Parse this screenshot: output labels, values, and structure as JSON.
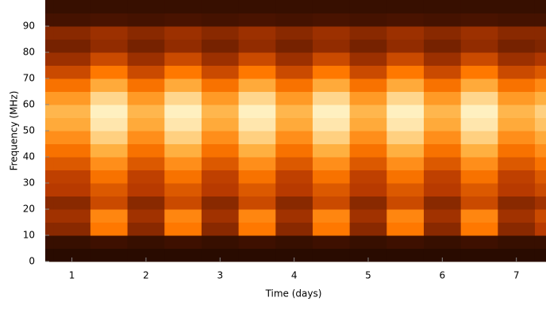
{
  "chart_data": {
    "type": "heatmap",
    "x_label": "Time (days)",
    "y_label": "Frequency (MHz)",
    "xlim": [
      0.64,
      7.4
    ],
    "ylim": [
      0,
      100
    ],
    "xticks": [
      1,
      2,
      3,
      4,
      5,
      6,
      7
    ],
    "yticks": [
      0,
      10,
      20,
      30,
      40,
      50,
      60,
      70,
      80,
      90
    ],
    "xbins": [
      0.64,
      0.75,
      1.25,
      1.75,
      2.25,
      2.75,
      3.25,
      3.75,
      4.25,
      4.75,
      5.25,
      5.75,
      6.25,
      6.75,
      7.25,
      7.4
    ],
    "ybins": [
      0,
      5,
      10,
      15,
      20,
      25,
      30,
      35,
      40,
      45,
      50,
      55,
      60,
      65,
      70,
      75,
      80,
      85,
      90,
      95,
      100
    ],
    "colormap": [
      "#140500",
      "#5a1800",
      "#b83a00",
      "#ff7800",
      "#ffb040",
      "#fff0c0"
    ],
    "values": [
      [
        0.06,
        0.06,
        0.06,
        0.06,
        0.06,
        0.06,
        0.06,
        0.06,
        0.06,
        0.06,
        0.06,
        0.06,
        0.06,
        0.06,
        0.06
      ],
      [
        0.1,
        0.1,
        0.12,
        0.1,
        0.12,
        0.1,
        0.12,
        0.1,
        0.12,
        0.1,
        0.12,
        0.1,
        0.12,
        0.1,
        0.1
      ],
      [
        0.3,
        0.3,
        0.6,
        0.3,
        0.6,
        0.3,
        0.6,
        0.3,
        0.6,
        0.3,
        0.6,
        0.3,
        0.6,
        0.3,
        0.4
      ],
      [
        0.35,
        0.35,
        0.65,
        0.35,
        0.65,
        0.35,
        0.65,
        0.35,
        0.65,
        0.35,
        0.65,
        0.35,
        0.65,
        0.35,
        0.45
      ],
      [
        0.3,
        0.3,
        0.45,
        0.3,
        0.45,
        0.3,
        0.45,
        0.3,
        0.45,
        0.3,
        0.45,
        0.3,
        0.45,
        0.3,
        0.35
      ],
      [
        0.4,
        0.4,
        0.5,
        0.4,
        0.5,
        0.4,
        0.5,
        0.4,
        0.5,
        0.4,
        0.5,
        0.4,
        0.5,
        0.4,
        0.45
      ],
      [
        0.42,
        0.42,
        0.58,
        0.42,
        0.58,
        0.42,
        0.58,
        0.42,
        0.58,
        0.42,
        0.58,
        0.42,
        0.58,
        0.42,
        0.5
      ],
      [
        0.5,
        0.5,
        0.68,
        0.5,
        0.68,
        0.5,
        0.68,
        0.5,
        0.68,
        0.5,
        0.68,
        0.5,
        0.68,
        0.5,
        0.58
      ],
      [
        0.58,
        0.58,
        0.8,
        0.58,
        0.8,
        0.58,
        0.8,
        0.58,
        0.8,
        0.58,
        0.8,
        0.58,
        0.8,
        0.58,
        0.68
      ],
      [
        0.68,
        0.68,
        0.9,
        0.68,
        0.9,
        0.68,
        0.9,
        0.68,
        0.9,
        0.68,
        0.9,
        0.68,
        0.9,
        0.68,
        0.78
      ],
      [
        0.78,
        0.78,
        0.97,
        0.78,
        0.97,
        0.78,
        0.97,
        0.78,
        0.97,
        0.78,
        0.97,
        0.78,
        0.97,
        0.78,
        0.86
      ],
      [
        0.82,
        0.82,
        1.0,
        0.82,
        1.0,
        0.82,
        1.0,
        0.82,
        1.0,
        0.82,
        1.0,
        0.82,
        1.0,
        0.82,
        0.9
      ],
      [
        0.72,
        0.72,
        0.92,
        0.72,
        0.92,
        0.72,
        0.92,
        0.72,
        0.92,
        0.72,
        0.92,
        0.72,
        0.92,
        0.72,
        0.8
      ],
      [
        0.58,
        0.58,
        0.78,
        0.58,
        0.78,
        0.58,
        0.78,
        0.58,
        0.78,
        0.58,
        0.78,
        0.58,
        0.78,
        0.58,
        0.66
      ],
      [
        0.45,
        0.45,
        0.6,
        0.45,
        0.6,
        0.45,
        0.6,
        0.45,
        0.6,
        0.45,
        0.6,
        0.45,
        0.6,
        0.45,
        0.5
      ],
      [
        0.34,
        0.34,
        0.45,
        0.34,
        0.45,
        0.34,
        0.45,
        0.34,
        0.45,
        0.34,
        0.45,
        0.34,
        0.45,
        0.34,
        0.38
      ],
      [
        0.26,
        0.26,
        0.32,
        0.26,
        0.32,
        0.26,
        0.32,
        0.26,
        0.32,
        0.26,
        0.32,
        0.26,
        0.32,
        0.26,
        0.28
      ],
      [
        0.3,
        0.3,
        0.34,
        0.3,
        0.34,
        0.3,
        0.34,
        0.3,
        0.34,
        0.3,
        0.34,
        0.3,
        0.34,
        0.3,
        0.3
      ],
      [
        0.14,
        0.14,
        0.15,
        0.14,
        0.15,
        0.14,
        0.15,
        0.14,
        0.15,
        0.14,
        0.15,
        0.14,
        0.15,
        0.14,
        0.14
      ],
      [
        0.1,
        0.1,
        0.1,
        0.1,
        0.1,
        0.1,
        0.1,
        0.1,
        0.1,
        0.1,
        0.1,
        0.1,
        0.1,
        0.1,
        0.1
      ]
    ]
  }
}
